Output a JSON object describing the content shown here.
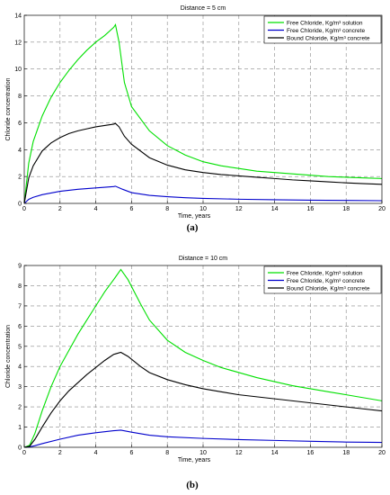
{
  "chart_data": [
    {
      "type": "line",
      "title": "Distance = 5 cm",
      "xlabel": "Time, years",
      "ylabel": "Chloride concentration",
      "xlim": [
        0,
        20
      ],
      "ylim": [
        0,
        14
      ],
      "xticks": [
        0,
        2,
        4,
        6,
        8,
        10,
        12,
        14,
        16,
        18,
        20
      ],
      "yticks": [
        0,
        2,
        4,
        6,
        8,
        10,
        12,
        14
      ],
      "grid": true,
      "legend_position": "top-right",
      "caption": "(a)",
      "series": [
        {
          "name": "Free Chloride, Kg/m³ solution",
          "color": "#00e000",
          "points": [
            [
              0,
              0
            ],
            [
              0.25,
              3.0
            ],
            [
              0.5,
              4.6
            ],
            [
              1,
              6.5
            ],
            [
              1.5,
              7.9
            ],
            [
              2,
              9.0
            ],
            [
              2.5,
              9.9
            ],
            [
              3,
              10.7
            ],
            [
              3.5,
              11.4
            ],
            [
              4,
              12.0
            ],
            [
              4.5,
              12.5
            ],
            [
              5,
              13.1
            ],
            [
              5.1,
              13.3
            ],
            [
              5.3,
              12.0
            ],
            [
              5.6,
              9.0
            ],
            [
              6,
              7.2
            ],
            [
              7,
              5.4
            ],
            [
              8,
              4.3
            ],
            [
              9,
              3.6
            ],
            [
              10,
              3.1
            ],
            [
              11,
              2.8
            ],
            [
              12,
              2.6
            ],
            [
              13,
              2.4
            ],
            [
              14,
              2.3
            ],
            [
              15,
              2.2
            ],
            [
              16,
              2.1
            ],
            [
              17,
              2.0
            ],
            [
              18,
              1.95
            ],
            [
              19,
              1.9
            ],
            [
              20,
              1.85
            ]
          ]
        },
        {
          "name": "Free Chloride, Kg/m³ concrete",
          "color": "#0000cc",
          "points": [
            [
              0,
              0
            ],
            [
              0.25,
              0.3
            ],
            [
              0.5,
              0.45
            ],
            [
              1,
              0.65
            ],
            [
              2,
              0.9
            ],
            [
              3,
              1.05
            ],
            [
              4,
              1.15
            ],
            [
              5,
              1.25
            ],
            [
              5.1,
              1.28
            ],
            [
              5.5,
              1.05
            ],
            [
              6,
              0.8
            ],
            [
              7,
              0.6
            ],
            [
              8,
              0.5
            ],
            [
              9,
              0.42
            ],
            [
              10,
              0.37
            ],
            [
              12,
              0.31
            ],
            [
              14,
              0.27
            ],
            [
              16,
              0.24
            ],
            [
              18,
              0.22
            ],
            [
              20,
              0.2
            ]
          ]
        },
        {
          "name": "Bound Chloride, Kg/m³ concrete",
          "color": "#000000",
          "points": [
            [
              0,
              0
            ],
            [
              0.25,
              1.9
            ],
            [
              0.5,
              2.8
            ],
            [
              1,
              3.9
            ],
            [
              1.5,
              4.5
            ],
            [
              2,
              4.9
            ],
            [
              2.5,
              5.2
            ],
            [
              3,
              5.4
            ],
            [
              3.5,
              5.55
            ],
            [
              4,
              5.7
            ],
            [
              4.5,
              5.8
            ],
            [
              5,
              5.9
            ],
            [
              5.1,
              5.95
            ],
            [
              5.3,
              5.7
            ],
            [
              5.6,
              5.0
            ],
            [
              6,
              4.4
            ],
            [
              7,
              3.4
            ],
            [
              8,
              2.85
            ],
            [
              9,
              2.5
            ],
            [
              10,
              2.3
            ],
            [
              11,
              2.15
            ],
            [
              12,
              2.05
            ],
            [
              13,
              1.95
            ],
            [
              14,
              1.85
            ],
            [
              15,
              1.75
            ],
            [
              16,
              1.68
            ],
            [
              17,
              1.6
            ],
            [
              18,
              1.53
            ],
            [
              19,
              1.47
            ],
            [
              20,
              1.42
            ]
          ]
        }
      ]
    },
    {
      "type": "line",
      "title": "Distance = 10 cm",
      "xlabel": "Time, years",
      "ylabel": "Chloride concentration",
      "xlim": [
        0,
        20
      ],
      "ylim": [
        0,
        9
      ],
      "xticks": [
        0,
        2,
        4,
        6,
        8,
        10,
        12,
        14,
        16,
        18,
        20
      ],
      "yticks": [
        0,
        1,
        2,
        3,
        4,
        5,
        6,
        7,
        8,
        9
      ],
      "grid": true,
      "legend_position": "top-right",
      "caption": "(b)",
      "series": [
        {
          "name": "Free Chloride, Kg/m³ solution",
          "color": "#00e000",
          "points": [
            [
              0,
              0
            ],
            [
              0.3,
              0.1
            ],
            [
              0.6,
              0.7
            ],
            [
              1,
              1.8
            ],
            [
              1.5,
              3.0
            ],
            [
              2,
              4.0
            ],
            [
              2.5,
              4.8
            ],
            [
              3,
              5.6
            ],
            [
              3.5,
              6.3
            ],
            [
              4,
              7.0
            ],
            [
              4.5,
              7.7
            ],
            [
              5,
              8.3
            ],
            [
              5.4,
              8.8
            ],
            [
              5.8,
              8.3
            ],
            [
              6.5,
              7.1
            ],
            [
              7,
              6.3
            ],
            [
              8,
              5.3
            ],
            [
              9,
              4.7
            ],
            [
              10,
              4.3
            ],
            [
              11,
              3.95
            ],
            [
              12,
              3.7
            ],
            [
              13,
              3.45
            ],
            [
              14,
              3.25
            ],
            [
              15,
              3.05
            ],
            [
              16,
              2.9
            ],
            [
              17,
              2.75
            ],
            [
              18,
              2.6
            ],
            [
              19,
              2.45
            ],
            [
              20,
              2.3
            ]
          ]
        },
        {
          "name": "Free Chloride, Kg/m³ concrete",
          "color": "#0000cc",
          "points": [
            [
              0,
              0
            ],
            [
              0.3,
              0.02
            ],
            [
              0.6,
              0.08
            ],
            [
              1,
              0.18
            ],
            [
              2,
              0.4
            ],
            [
              3,
              0.6
            ],
            [
              4,
              0.72
            ],
            [
              5,
              0.82
            ],
            [
              5.4,
              0.85
            ],
            [
              6,
              0.75
            ],
            [
              7,
              0.6
            ],
            [
              8,
              0.52
            ],
            [
              10,
              0.44
            ],
            [
              12,
              0.38
            ],
            [
              14,
              0.34
            ],
            [
              16,
              0.3
            ],
            [
              18,
              0.26
            ],
            [
              20,
              0.24
            ]
          ]
        },
        {
          "name": "Bound Chloride, Kg/m³ concrete",
          "color": "#000000",
          "points": [
            [
              0,
              0
            ],
            [
              0.3,
              0.05
            ],
            [
              0.6,
              0.4
            ],
            [
              1,
              1.0
            ],
            [
              1.5,
              1.7
            ],
            [
              2,
              2.3
            ],
            [
              2.5,
              2.8
            ],
            [
              3,
              3.2
            ],
            [
              3.5,
              3.6
            ],
            [
              4,
              3.95
            ],
            [
              4.5,
              4.3
            ],
            [
              5,
              4.6
            ],
            [
              5.4,
              4.7
            ],
            [
              5.8,
              4.5
            ],
            [
              6.5,
              4.0
            ],
            [
              7,
              3.7
            ],
            [
              8,
              3.35
            ],
            [
              9,
              3.1
            ],
            [
              10,
              2.9
            ],
            [
              11,
              2.75
            ],
            [
              12,
              2.6
            ],
            [
              13,
              2.5
            ],
            [
              14,
              2.4
            ],
            [
              15,
              2.3
            ],
            [
              16,
              2.2
            ],
            [
              17,
              2.1
            ],
            [
              18,
              2.0
            ],
            [
              19,
              1.9
            ],
            [
              20,
              1.8
            ]
          ]
        }
      ]
    }
  ]
}
